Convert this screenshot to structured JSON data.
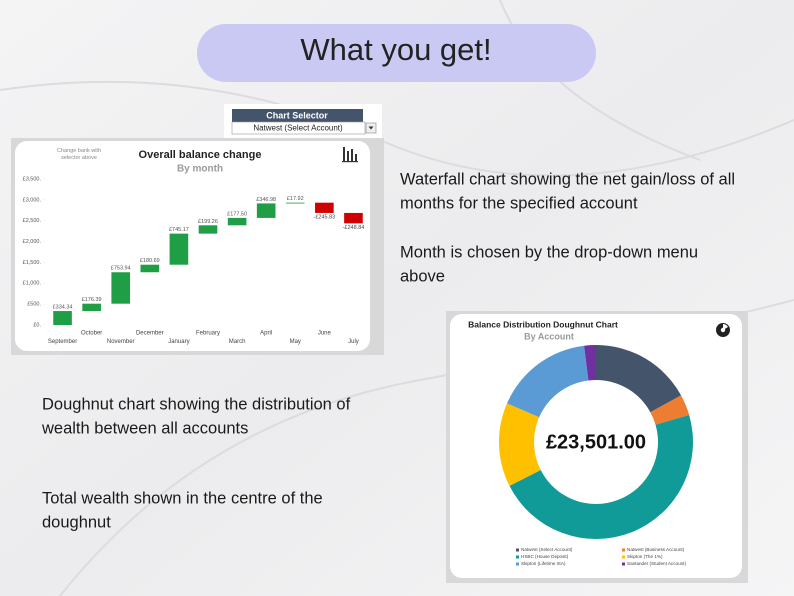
{
  "header": {
    "title": "What you get!"
  },
  "chart_selector": {
    "label": "Chart Selector",
    "selected": "Natwest (Select Account)"
  },
  "notes": [
    {
      "lines": [
        "Waterfall chart showing the net gain/loss of all",
        "months for the specified account"
      ]
    },
    {
      "lines": [
        "Month is chosen by the drop-down menu",
        "above"
      ]
    },
    {
      "lines": [
        "Doughnut chart showing the distribution of",
        "wealth between all accounts"
      ]
    },
    {
      "lines": [
        "Total wealth shown in the centre of the",
        "doughnut"
      ]
    }
  ],
  "chart_data": [
    {
      "type": "waterfall",
      "title": "Overall balance change",
      "subtitle": "By month",
      "annotation": "Change bank with selector above",
      "categories": [
        "September",
        "October",
        "November",
        "December",
        "January",
        "February",
        "March",
        "April",
        "May",
        "June",
        "July"
      ],
      "values": [
        334.34,
        176.39,
        753.94,
        180.69,
        745.17,
        199.26,
        177.5,
        346.98,
        17.92,
        -245.83,
        -248.84
      ],
      "value_labels": [
        "£334.34",
        "£176.39",
        "£753.94",
        "£180.69",
        "£745.17",
        "£199.26",
        "£177.50",
        "£346.98",
        "£17.92",
        "-£245.83",
        "-£248.84"
      ],
      "increase_color": "#1f9e45",
      "decrease_color": "#d00000",
      "ylim": [
        0,
        3500
      ],
      "yticks": [
        {
          "value": 0,
          "label": "£0."
        },
        {
          "value": 500,
          "label": "£500."
        },
        {
          "value": 1000,
          "label": "£1,000."
        },
        {
          "value": 1500,
          "label": "£1,500."
        },
        {
          "value": 2000,
          "label": "£2,000."
        },
        {
          "value": 2500,
          "label": "£2,500."
        },
        {
          "value": 3000,
          "label": "£3,000."
        },
        {
          "value": 3500,
          "label": "£3,500."
        }
      ],
      "grid": false
    },
    {
      "type": "doughnut",
      "title": "Balance Distribution Doughnut Chart",
      "subtitle": "By Account",
      "center_label": "£23,501.00",
      "series": [
        {
          "name": "Natwest (Select Account)",
          "color": "#44546a",
          "value": 4000
        },
        {
          "name": "Natwest (Business Account)",
          "color": "#ed7d31",
          "value": 820
        },
        {
          "name": "HSBC (House Deposit)",
          "color": "#109a98",
          "value": 11050
        },
        {
          "name": "Skipton (The 1%)",
          "color": "#ffc000",
          "value": 3290
        },
        {
          "name": "Skipton (Lifetime ISA)",
          "color": "#5b9bd5",
          "value": 3880
        },
        {
          "name": "Santander (Student Account)",
          "color": "#7030a0",
          "value": 460
        }
      ]
    }
  ]
}
